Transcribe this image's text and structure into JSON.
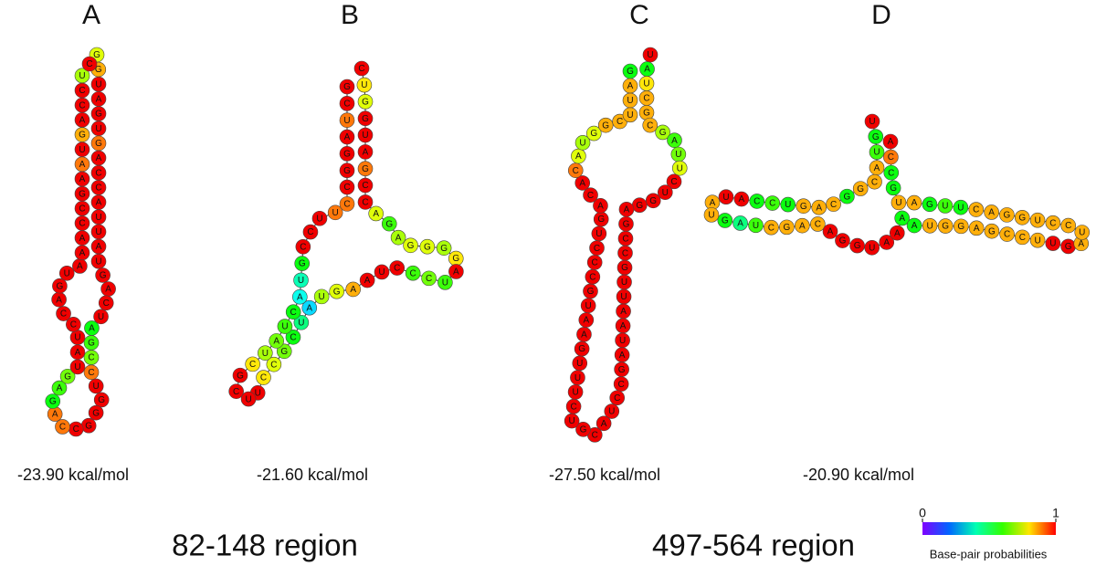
{
  "panels": [
    {
      "label": "A",
      "energy": "-23.90 kcal/mol",
      "bases": [
        "G",
        "G",
        "U",
        "A",
        "G",
        "U",
        "G",
        "A",
        "C",
        "C",
        "A",
        "U",
        "U",
        "A",
        "U",
        "G",
        "A",
        "C",
        "U",
        "A",
        "G",
        "C",
        "C",
        "U",
        "G",
        "G",
        "G",
        "C",
        "C",
        "A",
        "G",
        "A",
        "G",
        "U",
        "A",
        "U",
        "C",
        "C",
        "A",
        "G",
        "U",
        "A",
        "A",
        "A",
        "C",
        "C",
        "G",
        "A",
        "A",
        "U",
        "G",
        "A",
        "C",
        "C",
        "U",
        "C"
      ],
      "probabilities": [
        0.75,
        0.85,
        1,
        1,
        1,
        1,
        0.9,
        1,
        1,
        1,
        1,
        1,
        1,
        1,
        1,
        1,
        1,
        1,
        1,
        0.55,
        0.6,
        0.65,
        0.9,
        1,
        1,
        1,
        1,
        1,
        0.9,
        0.9,
        0.55,
        0.6,
        0.65,
        1,
        1,
        1,
        1,
        1,
        1,
        1,
        1,
        1,
        1,
        1,
        1,
        1,
        1,
        1,
        0.9,
        1,
        0.85,
        1,
        1,
        1,
        0.7,
        1
      ]
    },
    {
      "label": "B",
      "energy": "-21.60 kcal/mol",
      "bases": [
        "C",
        "U",
        "G",
        "G",
        "U",
        "A",
        "G",
        "C",
        "C",
        "A",
        "G",
        "A",
        "G",
        "G",
        "G",
        "G",
        "A",
        "U",
        "C",
        "C",
        "C",
        "U",
        "A",
        "A",
        "G",
        "U",
        "A",
        "U",
        "C",
        "G",
        "C",
        "C",
        "U",
        "U",
        "C",
        "G",
        "C",
        "U",
        "A",
        "U",
        "C",
        "A",
        "U",
        "G",
        "C",
        "C",
        "U",
        "U",
        "C",
        "C",
        "G",
        "G",
        "A",
        "U",
        "C",
        "G"
      ],
      "probabilities": [
        1,
        0.8,
        0.75,
        1,
        1,
        1,
        0.9,
        1,
        1,
        0.75,
        0.6,
        0.7,
        0.75,
        0.75,
        0.7,
        0.8,
        1,
        0.6,
        0.65,
        0.6,
        1,
        1,
        1,
        0.85,
        0.75,
        0.7,
        0.3,
        0.45,
        0.55,
        0.65,
        0.75,
        0.8,
        1,
        1,
        1,
        1,
        0.8,
        0.7,
        0.65,
        0.6,
        0.55,
        0.35,
        0.4,
        0.55,
        1,
        1,
        1,
        0.9,
        0.9,
        1,
        1,
        1,
        1,
        0.9,
        1,
        1
      ]
    },
    {
      "label": "C",
      "energy": "-27.50 kcal/mol",
      "bases": [
        "U",
        "A",
        "U",
        "C",
        "G",
        "C",
        "G",
        "A",
        "U",
        "U",
        "C",
        "U",
        "G",
        "G",
        "A",
        "G",
        "C",
        "C",
        "G",
        "U",
        "U",
        "A",
        "A",
        "U",
        "A",
        "G",
        "C",
        "C",
        "U",
        "A",
        "C",
        "G",
        "U",
        "C",
        "U",
        "U",
        "U",
        "G",
        "A",
        "A",
        "U",
        "G",
        "C",
        "C",
        "C",
        "U",
        "G",
        "A",
        "C",
        "A",
        "C",
        "A",
        "U",
        "G",
        "G",
        "C",
        "U",
        "U",
        "A",
        "G"
      ],
      "probabilities": [
        1,
        0.55,
        0.8,
        0.85,
        0.85,
        0.85,
        0.7,
        0.6,
        0.65,
        0.75,
        1,
        1,
        1,
        1,
        1,
        1,
        1,
        1,
        1,
        1,
        1,
        1,
        1,
        1,
        1,
        1,
        1,
        1,
        1,
        1,
        1,
        1,
        1,
        1,
        1,
        1,
        1,
        1,
        1,
        1,
        1,
        1,
        1,
        1,
        1,
        1,
        1,
        1,
        1,
        1,
        0.9,
        0.75,
        0.7,
        0.75,
        0.85,
        0.85,
        0.85,
        0.85,
        0.85,
        0.55
      ]
    },
    {
      "label": "D",
      "energy": "-20.90 kcal/mol",
      "bases": [
        "U",
        "G",
        "U",
        "A",
        "C",
        "G",
        "G",
        "C",
        "A",
        "G",
        "U",
        "C",
        "C",
        "A",
        "U",
        "A",
        "U",
        "G",
        "A",
        "U",
        "C",
        "G",
        "A",
        "C",
        "A",
        "G",
        "G",
        "U",
        "A",
        "A",
        "A",
        "A",
        "U",
        "G",
        "G",
        "A",
        "G",
        "C",
        "C",
        "U",
        "U",
        "G",
        "A",
        "U",
        "C",
        "C",
        "U",
        "G",
        "G",
        "A",
        "C",
        "U",
        "U",
        "G",
        "A",
        "U",
        "G",
        "C",
        "C",
        "A"
      ],
      "probabilities": [
        1,
        0.55,
        0.6,
        0.85,
        0.85,
        0.85,
        0.55,
        0.85,
        0.85,
        0.85,
        0.55,
        0.6,
        0.55,
        1,
        1,
        0.85,
        0.85,
        0.55,
        0.45,
        0.6,
        0.85,
        0.85,
        0.85,
        0.85,
        1,
        1,
        1,
        1,
        1,
        1,
        0.55,
        0.55,
        0.85,
        0.85,
        0.85,
        0.85,
        0.85,
        0.85,
        0.85,
        0.85,
        1,
        1,
        0.85,
        0.85,
        0.85,
        0.85,
        0.85,
        0.85,
        0.85,
        0.85,
        0.85,
        0.55,
        0.6,
        0.55,
        0.85,
        0.85,
        0.55,
        0.55,
        0.9,
        1
      ]
    }
  ],
  "regions": [
    "82-148 region",
    "497-564 region"
  ],
  "legend": {
    "ticks": [
      0,
      1
    ],
    "title": "Base-pair probabilities"
  }
}
